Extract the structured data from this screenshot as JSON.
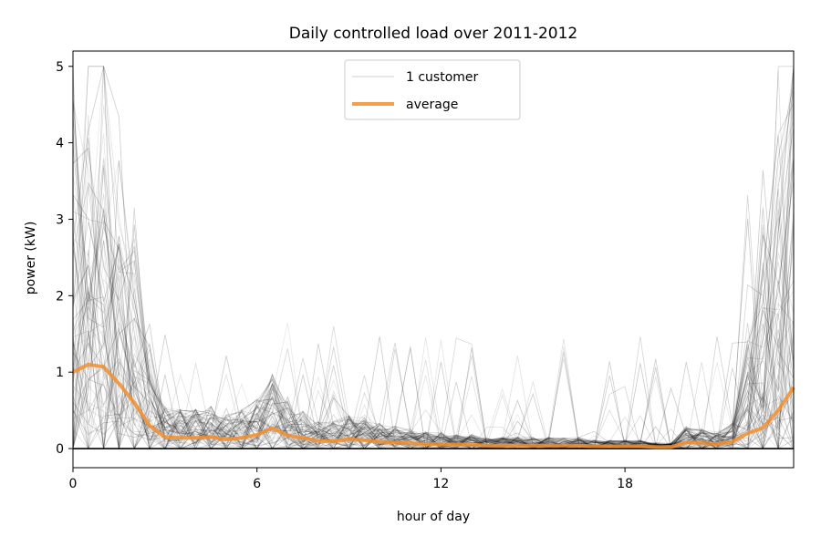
{
  "chart_data": {
    "type": "line",
    "title": "Daily controlled load over 2011-2012",
    "xlabel": "hour of day",
    "ylabel": "power (kW)",
    "xlim": [
      0,
      23.5
    ],
    "ylim": [
      -0.25,
      5.2
    ],
    "x_ticks": [
      0,
      6,
      12,
      18
    ],
    "y_ticks": [
      0,
      1,
      2,
      3,
      4,
      5
    ],
    "grid": false,
    "legend": {
      "position": "top-center",
      "entries": [
        {
          "label": "1 customer",
          "color": "#000000",
          "style": "thin translucent"
        },
        {
          "label": "average",
          "color": "#f28e2b",
          "style": "thick"
        }
      ]
    },
    "series": [
      {
        "name": "average",
        "color": "#f28e2b",
        "x": [
          0,
          0.5,
          1,
          1.5,
          2,
          2.5,
          3,
          3.5,
          4,
          4.5,
          5,
          5.5,
          6,
          6.5,
          7,
          7.5,
          8,
          8.5,
          9,
          9.5,
          10,
          10.5,
          11,
          11.5,
          12,
          12.5,
          13,
          13.5,
          14,
          14.5,
          15,
          15.5,
          16,
          16.5,
          17,
          17.5,
          18,
          18.5,
          19,
          19.5,
          20,
          20.5,
          21,
          21.5,
          22,
          22.5,
          23,
          23.5
        ],
        "y": [
          1.0,
          1.1,
          1.07,
          0.85,
          0.6,
          0.3,
          0.15,
          0.14,
          0.14,
          0.15,
          0.12,
          0.14,
          0.18,
          0.27,
          0.17,
          0.14,
          0.1,
          0.1,
          0.12,
          0.11,
          0.09,
          0.08,
          0.07,
          0.06,
          0.06,
          0.05,
          0.05,
          0.04,
          0.04,
          0.04,
          0.04,
          0.04,
          0.04,
          0.04,
          0.03,
          0.03,
          0.03,
          0.03,
          0.02,
          0.02,
          0.08,
          0.07,
          0.06,
          0.09,
          0.2,
          0.27,
          0.5,
          0.8
        ]
      }
    ]
  }
}
